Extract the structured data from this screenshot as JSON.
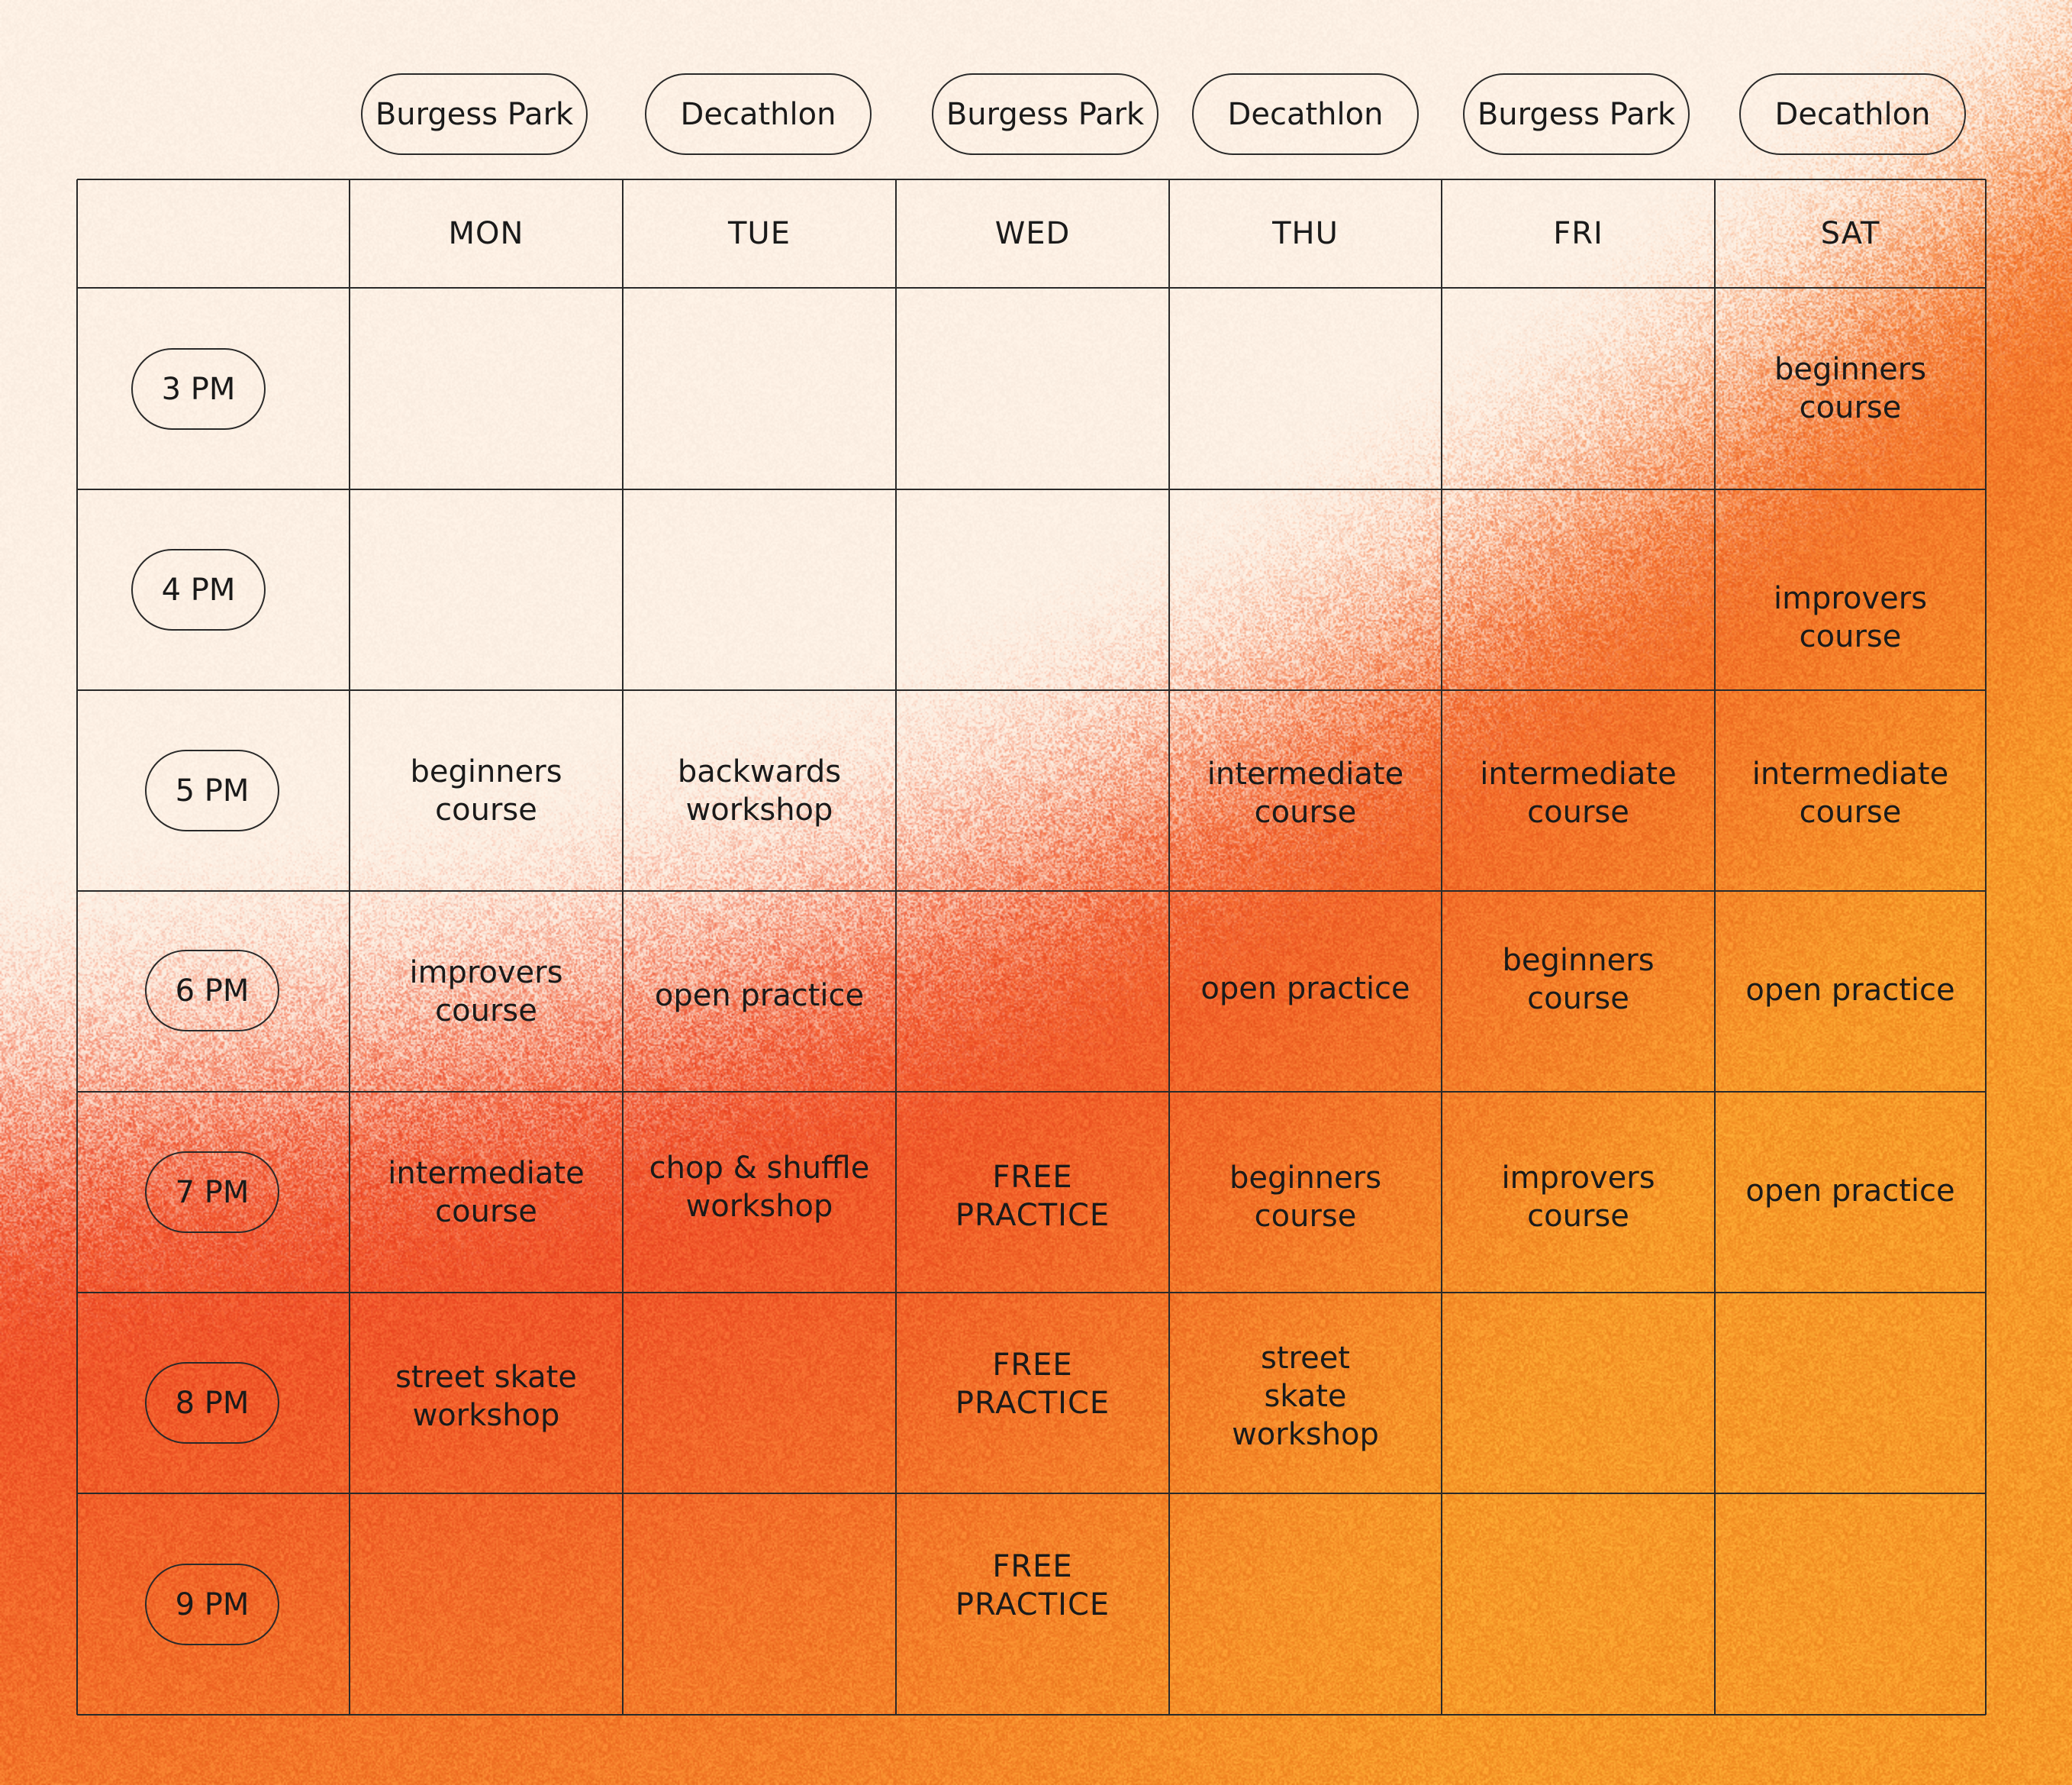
{
  "venues": [
    "Burgess Park",
    "Decathlon",
    "Burgess Park",
    "Decathlon",
    "Burgess Park",
    "Decathlon"
  ],
  "days": [
    "MON",
    "TUE",
    "WED",
    "THU",
    "FRI",
    "SAT"
  ],
  "times": [
    "3 PM",
    "4 PM",
    "5 PM",
    "6 PM",
    "7 PM",
    "8 PM",
    "9 PM"
  ],
  "schedule": [
    [
      "",
      "",
      "",
      "",
      "",
      "beginners course"
    ],
    [
      "",
      "",
      "",
      "",
      "",
      "improvers course"
    ],
    [
      "beginners course",
      "backwards workshop",
      "",
      "intermediate course",
      "intermediate course",
      "intermediate course"
    ],
    [
      "improvers course",
      "open practice",
      "",
      "open practice",
      "beginners course",
      "open practice"
    ],
    [
      "intermediate course",
      "chop & shuffle workshop",
      "FREE PRACTICE",
      "beginners course",
      "improvers course",
      "open practice"
    ],
    [
      "street skate workshop",
      "",
      "FREE PRACTICE",
      "street skate workshop",
      "",
      ""
    ],
    [
      "",
      "",
      "FREE PRACTICE",
      "",
      "",
      ""
    ]
  ],
  "colors": {
    "paper": "#fdf0e4",
    "red": "#f0512a",
    "orange": "#f79a2a",
    "line": "#2a2a2a"
  }
}
